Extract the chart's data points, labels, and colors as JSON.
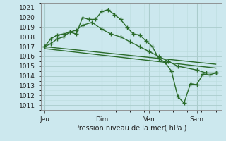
{
  "background_color": "#cce8ee",
  "grid_color_major": "#aacccc",
  "grid_color_minor": "#bbdddd",
  "line_color": "#2a6b2a",
  "ylabel_text": "Pression niveau de la mer( hPa )",
  "xtick_labels": [
    "Jeu",
    "Dim",
    "Ven",
    "Sam"
  ],
  "xtick_positions": [
    0,
    3,
    5.5,
    8
  ],
  "ylim": [
    1010.5,
    1021.5
  ],
  "xlim": [
    -0.2,
    9.3
  ],
  "yticks": [
    1011,
    1012,
    1013,
    1014,
    1015,
    1016,
    1017,
    1018,
    1019,
    1020,
    1021
  ],
  "line1_x": [
    0,
    0.33,
    0.67,
    1.0,
    1.33,
    1.67,
    2.0,
    2.33,
    2.67,
    3.0,
    3.33,
    3.67,
    4.0,
    4.33,
    4.67,
    5.0,
    5.33,
    5.67,
    6.0,
    6.33,
    6.67,
    7.0,
    7.33,
    7.67,
    8.0,
    8.33,
    8.67,
    9.0
  ],
  "line1_y": [
    1017.0,
    1017.3,
    1017.8,
    1018.0,
    1018.5,
    1018.3,
    1020.0,
    1019.8,
    1019.8,
    1020.6,
    1020.8,
    1020.3,
    1019.8,
    1019.0,
    1018.3,
    1018.2,
    1017.6,
    1017.0,
    1015.8,
    1015.4,
    1014.5,
    1011.9,
    1011.2,
    1013.2,
    1013.1,
    1014.2,
    1014.1,
    1014.3
  ],
  "line2_x": [
    0,
    0.33,
    0.67,
    1.0,
    1.33,
    1.67,
    2.0,
    2.5,
    3.0,
    3.5,
    4.0,
    4.5,
    5.0,
    5.5,
    6.0,
    6.5,
    7.0,
    8.0,
    8.5,
    9.0
  ],
  "line2_y": [
    1017.0,
    1017.8,
    1018.2,
    1018.3,
    1018.5,
    1018.7,
    1019.2,
    1019.5,
    1018.8,
    1018.3,
    1018.0,
    1017.5,
    1017.0,
    1016.5,
    1016.0,
    1015.5,
    1015.0,
    1014.6,
    1014.3,
    1014.3
  ],
  "line3_x": [
    0,
    9.0
  ],
  "line3_y": [
    1017.0,
    1015.2
  ],
  "line4_x": [
    0,
    9.0
  ],
  "line4_y": [
    1016.8,
    1014.8
  ]
}
